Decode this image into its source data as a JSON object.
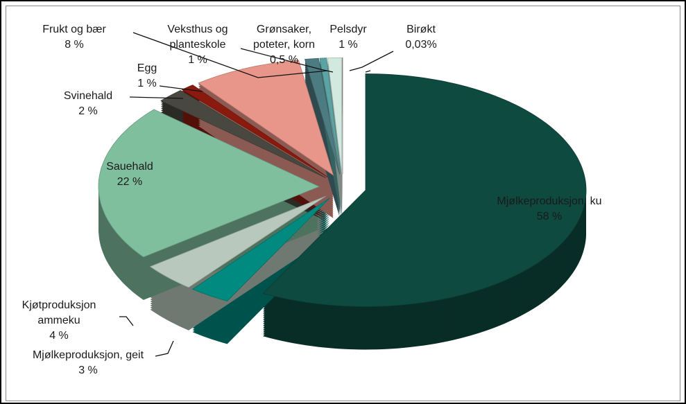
{
  "chart_data": {
    "type": "pie",
    "categories": [
      "Mjølkeproduksjon, ku",
      "Mjølkeproduksjon, geit",
      "Kjøtproduksjon ammeku",
      "Sauehald",
      "Svinehald",
      "Egg",
      "Frukt  og bær",
      "Veksthus og planteskole",
      "Grønsaker, poteter, korn",
      "Pelsdyr",
      "Birøkt"
    ],
    "values": [
      58,
      3,
      4,
      22,
      2,
      1,
      8,
      1,
      0.5,
      1,
      0.03
    ],
    "value_labels": [
      "58 %",
      "3 %",
      "4 %",
      "22 %",
      "2 %",
      "1 %",
      "8 %",
      "1 %",
      "0,5 %",
      "1 %",
      "0,03%"
    ],
    "colors": [
      "#0e4a40",
      "#008a80",
      "#b9c8bd",
      "#80bf9e",
      "#484840",
      "#8a1a0e",
      "#e8968a",
      "#4d7b82",
      "#5ca3a3",
      "#d2e9e0",
      "#a0a0a0"
    ]
  }
}
